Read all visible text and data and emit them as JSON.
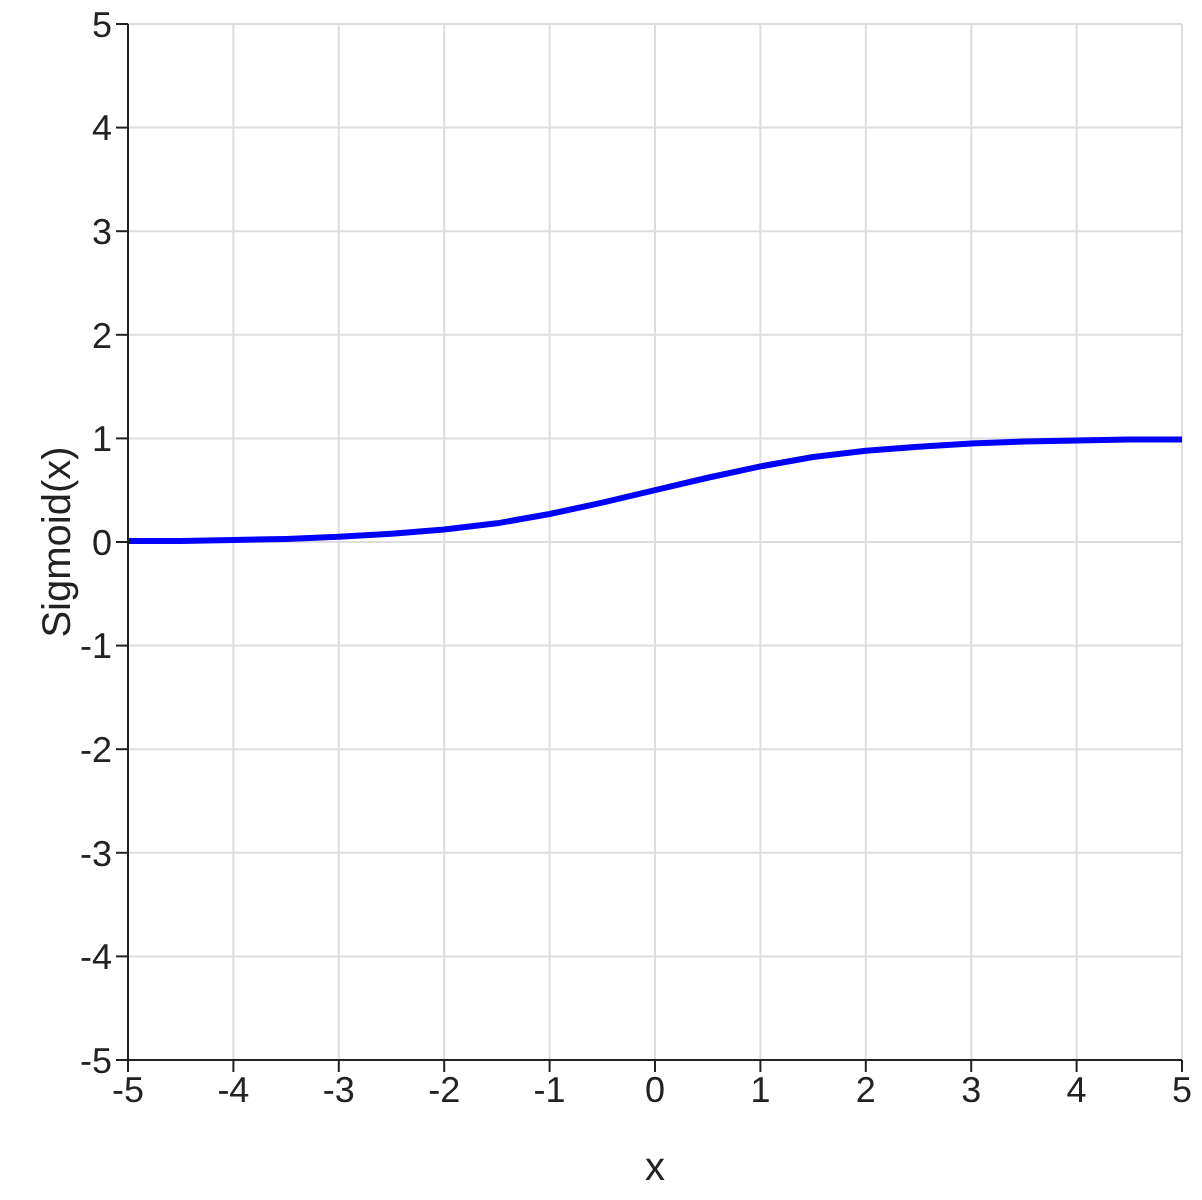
{
  "chart_data": {
    "type": "line",
    "xlabel": "x",
    "ylabel": "Sigmoid(x)",
    "x": [
      -5,
      -4.5,
      -4,
      -3.5,
      -3,
      -2.5,
      -2,
      -1.5,
      -1,
      -0.5,
      0,
      0.5,
      1,
      1.5,
      2,
      2.5,
      3,
      3.5,
      4,
      4.5,
      5
    ],
    "series": [
      {
        "color": "#0000ff",
        "values": [
          0.01,
          0.01,
          0.02,
          0.03,
          0.05,
          0.08,
          0.12,
          0.18,
          0.27,
          0.38,
          0.5,
          0.62,
          0.73,
          0.82,
          0.88,
          0.92,
          0.95,
          0.97,
          0.98,
          0.99,
          0.99
        ]
      }
    ],
    "xlim": [
      -5,
      5
    ],
    "xticks": [
      -5,
      -4,
      -3,
      -2,
      -1,
      0,
      1,
      2,
      3,
      4,
      5
    ],
    "ylim": [
      -5,
      5
    ],
    "yticks": [
      -5,
      -4,
      -3,
      -2,
      -1,
      0,
      1,
      2,
      3,
      4,
      5
    ],
    "grid": true,
    "marker": "none",
    "line_style": "solid"
  }
}
